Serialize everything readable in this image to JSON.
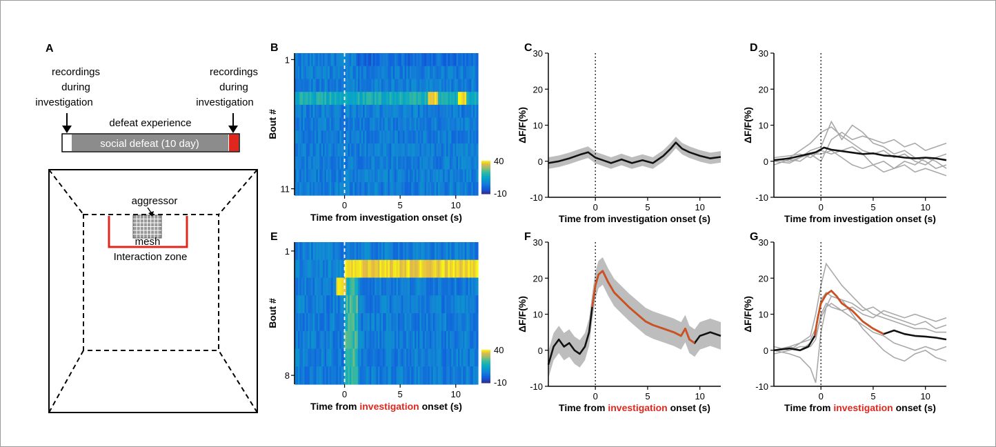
{
  "colors": {
    "black_trace": "#111111",
    "orange_trace": "#d2501e",
    "gray_trace": "#a8a8a8",
    "sem_band": "#bdbdbd",
    "highlight_red": "#e0271e",
    "wall_red": "#e0271e",
    "timeline_gray": "#8c8c8c"
  },
  "panels": {
    "A": {
      "label": "A",
      "left_note": [
        "recordings",
        "during",
        "investigation"
      ],
      "right_note": [
        "recordings",
        "during",
        "investigation"
      ],
      "timeline_title": "defeat experience",
      "timeline_bar": "social defeat (10 day)",
      "aggressor_label": "aggressor",
      "mesh_label": "mesh",
      "zone_label": "Interaction zone"
    }
  },
  "chart_data": [
    {
      "id": "B",
      "label": "B",
      "type": "heatmap",
      "xlabel_parts": [
        "Time from ",
        "investigation",
        " onset (s)"
      ],
      "xlabel_highlight": false,
      "ylabel": "Bout #",
      "xlim": [
        -4.5,
        12
      ],
      "xticks": [
        0,
        5,
        10
      ],
      "row_tick_labels": [
        "1",
        "11"
      ],
      "rows": 11,
      "colorbar": {
        "min": -10,
        "max": 40,
        "labels": [
          "40",
          "-10"
        ]
      },
      "hot_rows": [
        3
      ],
      "hot_spots": [
        [
          3,
          7.9,
          0.45
        ],
        [
          3,
          10.6,
          0.35
        ]
      ]
    },
    {
      "id": "C",
      "label": "C",
      "type": "line",
      "xlabel_parts": [
        "Time from ",
        "investigation",
        " onset (s)"
      ],
      "xlabel_highlight": false,
      "ylabel": "ΔF/F(%)",
      "xlim": [
        -4.5,
        12
      ],
      "ylim": [
        -10,
        30
      ],
      "xticks": [
        0,
        5,
        10
      ],
      "yticks": [
        30,
        20,
        10,
        0,
        -10
      ],
      "mean": [
        [
          -4.5,
          -0.5
        ],
        [
          -3.5,
          0
        ],
        [
          -2.5,
          0.8
        ],
        [
          -1.5,
          1.8
        ],
        [
          -0.7,
          2.5
        ],
        [
          0,
          1
        ],
        [
          0.8,
          0.2
        ],
        [
          1.5,
          -0.5
        ],
        [
          2.5,
          0.5
        ],
        [
          3.5,
          -0.5
        ],
        [
          4.5,
          0.3
        ],
        [
          5.5,
          -0.5
        ],
        [
          6.5,
          1.5
        ],
        [
          7.2,
          3.5
        ],
        [
          7.7,
          5.2
        ],
        [
          8.3,
          3.5
        ],
        [
          9,
          2.5
        ],
        [
          10,
          1.5
        ],
        [
          11,
          0.8
        ],
        [
          12,
          1.2
        ]
      ],
      "sem": 1.6,
      "highlight_range": null,
      "individual": []
    },
    {
      "id": "D",
      "label": "D",
      "type": "line",
      "xlabel_parts": [
        "Time from ",
        "investigation",
        " onset (s)"
      ],
      "xlabel_highlight": false,
      "ylabel": "ΔF/F(%)",
      "xlim": [
        -4.5,
        12
      ],
      "ylim": [
        -10,
        30
      ],
      "xticks": [
        0,
        5,
        10
      ],
      "yticks": [
        30,
        20,
        10,
        0,
        -10
      ],
      "mean": [
        [
          -4.5,
          0.3
        ],
        [
          -3,
          0.8
        ],
        [
          -1.5,
          1.8
        ],
        [
          -0.5,
          2.5
        ],
        [
          0.3,
          3.8
        ],
        [
          1,
          3.2
        ],
        [
          2,
          2.8
        ],
        [
          3,
          2.4
        ],
        [
          4,
          2
        ],
        [
          5,
          2.2
        ],
        [
          6,
          1.6
        ],
        [
          7,
          1.4
        ],
        [
          8,
          1
        ],
        [
          9,
          0.8
        ],
        [
          10,
          1
        ],
        [
          11,
          0.8
        ],
        [
          12,
          0.3
        ]
      ],
      "sem": 0,
      "highlight_range": null,
      "individual": [
        [
          [
            -4.5,
            0
          ],
          [
            -3,
            1
          ],
          [
            -2,
            3
          ],
          [
            -1,
            5
          ],
          [
            0,
            8
          ],
          [
            1,
            9.5
          ],
          [
            2,
            7
          ],
          [
            3,
            5
          ],
          [
            4,
            3
          ],
          [
            5,
            2
          ],
          [
            6,
            3
          ],
          [
            7,
            1
          ],
          [
            8,
            2
          ],
          [
            9,
            0
          ],
          [
            10,
            -1
          ],
          [
            11,
            1
          ],
          [
            12,
            2
          ]
        ],
        [
          [
            -4.5,
            0.5
          ],
          [
            -3,
            0
          ],
          [
            -2,
            1
          ],
          [
            -1,
            3
          ],
          [
            0,
            4
          ],
          [
            1,
            11
          ],
          [
            2,
            6
          ],
          [
            3,
            10
          ],
          [
            4,
            8
          ],
          [
            5,
            5
          ],
          [
            6,
            4
          ],
          [
            7,
            2
          ],
          [
            8,
            3
          ],
          [
            9,
            1
          ],
          [
            10,
            0
          ],
          [
            11,
            -2
          ],
          [
            12,
            -1
          ]
        ],
        [
          [
            -4.5,
            -1
          ],
          [
            -3,
            0.5
          ],
          [
            -2,
            0
          ],
          [
            -1,
            2
          ],
          [
            0,
            2
          ],
          [
            1,
            3
          ],
          [
            2,
            1
          ],
          [
            3,
            -1
          ],
          [
            4,
            -2
          ],
          [
            5,
            -1
          ],
          [
            6,
            0
          ],
          [
            7,
            -2
          ],
          [
            8,
            -1
          ],
          [
            9,
            -3
          ],
          [
            10,
            -2
          ],
          [
            11,
            -3
          ],
          [
            12,
            -4
          ]
        ],
        [
          [
            -4.5,
            0
          ],
          [
            -3,
            -0.5
          ],
          [
            -2,
            1
          ],
          [
            -1,
            2
          ],
          [
            0,
            0
          ],
          [
            1,
            6
          ],
          [
            2,
            8
          ],
          [
            3,
            6
          ],
          [
            4,
            7
          ],
          [
            5,
            6
          ],
          [
            6,
            5
          ],
          [
            7,
            6
          ],
          [
            8,
            4
          ],
          [
            9,
            5
          ],
          [
            10,
            3
          ],
          [
            11,
            4
          ],
          [
            12,
            5
          ]
        ],
        [
          [
            -4.5,
            1
          ],
          [
            -3,
            1.5
          ],
          [
            -2,
            2
          ],
          [
            -1,
            1
          ],
          [
            0,
            3
          ],
          [
            1,
            2
          ],
          [
            2,
            3
          ],
          [
            3,
            4
          ],
          [
            4,
            2
          ],
          [
            5,
            -1
          ],
          [
            6,
            -3
          ],
          [
            7,
            -2
          ],
          [
            8,
            0
          ],
          [
            9,
            -1
          ],
          [
            10,
            1
          ],
          [
            11,
            0
          ],
          [
            12,
            -2
          ]
        ]
      ]
    },
    {
      "id": "E",
      "label": "E",
      "type": "heatmap",
      "xlabel_parts": [
        "Time from ",
        "investigation",
        " onset (s)"
      ],
      "xlabel_highlight": true,
      "ylabel": "Bout #",
      "xlim": [
        -4.5,
        12
      ],
      "xticks": [
        0,
        5,
        10
      ],
      "row_tick_labels": [
        "1",
        "8"
      ],
      "rows": 8,
      "colorbar": {
        "min": -10,
        "max": 40,
        "labels": [
          "40",
          "-10"
        ]
      },
      "hot_rows": [
        1
      ],
      "hot_spots": [
        [
          2,
          -0.3,
          0.45
        ]
      ]
    },
    {
      "id": "F",
      "label": "F",
      "type": "line",
      "xlabel_parts": [
        "Time from ",
        "investigation",
        " onset (s)"
      ],
      "xlabel_highlight": true,
      "ylabel": "ΔF/F(%)",
      "xlim": [
        -4.5,
        12
      ],
      "ylim": [
        -10,
        30
      ],
      "xticks": [
        0,
        5,
        10
      ],
      "yticks": [
        30,
        20,
        10,
        0,
        -10
      ],
      "mean": [
        [
          -4.5,
          -4
        ],
        [
          -4,
          1
        ],
        [
          -3.5,
          3
        ],
        [
          -3,
          1
        ],
        [
          -2.5,
          2
        ],
        [
          -2,
          0
        ],
        [
          -1.5,
          -1
        ],
        [
          -1,
          1
        ],
        [
          -0.6,
          5
        ],
        [
          -0.3,
          12
        ],
        [
          0,
          18
        ],
        [
          0.3,
          21
        ],
        [
          0.7,
          22
        ],
        [
          1.2,
          19
        ],
        [
          1.8,
          16
        ],
        [
          2.5,
          14
        ],
        [
          3.2,
          12
        ],
        [
          4,
          10
        ],
        [
          4.8,
          8
        ],
        [
          5.5,
          7
        ],
        [
          6.5,
          6
        ],
        [
          7.5,
          5
        ],
        [
          8.2,
          4
        ],
        [
          8.6,
          6
        ],
        [
          9,
          3
        ],
        [
          9.5,
          2
        ],
        [
          10,
          4
        ],
        [
          11,
          5
        ],
        [
          12,
          4
        ]
      ],
      "sem": 3.8,
      "highlight_range": [
        -0.5,
        9.5
      ],
      "individual": []
    },
    {
      "id": "G",
      "label": "G",
      "type": "line",
      "xlabel_parts": [
        "Time from ",
        "investigation",
        " onset (s)"
      ],
      "xlabel_highlight": true,
      "ylabel": "ΔF/F(%)",
      "xlim": [
        -4.5,
        12
      ],
      "ylim": [
        -10,
        30
      ],
      "xticks": [
        0,
        5,
        10
      ],
      "yticks": [
        30,
        20,
        10,
        0,
        -10
      ],
      "mean": [
        [
          -4.5,
          0
        ],
        [
          -3,
          0.5
        ],
        [
          -2,
          0
        ],
        [
          -1.2,
          1
        ],
        [
          -0.6,
          4
        ],
        [
          -0.3,
          9
        ],
        [
          0,
          13
        ],
        [
          0.5,
          15.5
        ],
        [
          1,
          16.5
        ],
        [
          1.5,
          15
        ],
        [
          2,
          13
        ],
        [
          3,
          11
        ],
        [
          4,
          8
        ],
        [
          5,
          6
        ],
        [
          6,
          4.5
        ],
        [
          6.5,
          5
        ],
        [
          7,
          5.5
        ],
        [
          8,
          4.5
        ],
        [
          9,
          4
        ],
        [
          10,
          3.8
        ],
        [
          11,
          3.5
        ],
        [
          12,
          3
        ]
      ],
      "sem": 0,
      "highlight_range": [
        -0.6,
        6.2
      ],
      "individual": [
        [
          [
            -4.5,
            0
          ],
          [
            -3,
            1
          ],
          [
            -2,
            2
          ],
          [
            -1,
            4
          ],
          [
            -0.5,
            10
          ],
          [
            0,
            18
          ],
          [
            0.5,
            24
          ],
          [
            1,
            22
          ],
          [
            2,
            18
          ],
          [
            3,
            15
          ],
          [
            4,
            12
          ],
          [
            5,
            10
          ],
          [
            6,
            9
          ],
          [
            7,
            8
          ],
          [
            8,
            7
          ],
          [
            9,
            6
          ],
          [
            10,
            6
          ],
          [
            11,
            5
          ],
          [
            12,
            5
          ]
        ],
        [
          [
            -4.5,
            0
          ],
          [
            -3,
            -1
          ],
          [
            -2,
            -2
          ],
          [
            -1,
            -5
          ],
          [
            -0.5,
            -9
          ],
          [
            0,
            5
          ],
          [
            0.5,
            12
          ],
          [
            1,
            15
          ],
          [
            2,
            14
          ],
          [
            3,
            10
          ],
          [
            4,
            6
          ],
          [
            5,
            3
          ],
          [
            6,
            0
          ],
          [
            7,
            -2
          ],
          [
            8,
            -3
          ],
          [
            9,
            -1
          ],
          [
            10,
            0
          ],
          [
            11,
            -2
          ],
          [
            12,
            -3
          ]
        ],
        [
          [
            -4.5,
            1
          ],
          [
            -3,
            0
          ],
          [
            -2,
            2
          ],
          [
            -1,
            3
          ],
          [
            -0.5,
            6
          ],
          [
            0,
            14
          ],
          [
            0.5,
            16
          ],
          [
            1,
            15
          ],
          [
            2,
            14
          ],
          [
            3,
            13
          ],
          [
            4,
            11
          ],
          [
            5,
            12
          ],
          [
            6,
            10
          ],
          [
            7,
            9
          ],
          [
            8,
            8
          ],
          [
            9,
            7
          ],
          [
            10,
            8
          ],
          [
            11,
            6
          ],
          [
            12,
            7
          ]
        ],
        [
          [
            -4.5,
            -1
          ],
          [
            -3,
            0
          ],
          [
            -2,
            1
          ],
          [
            -1,
            1
          ],
          [
            -0.5,
            3
          ],
          [
            0,
            10
          ],
          [
            0.5,
            13
          ],
          [
            1,
            12
          ],
          [
            2,
            11
          ],
          [
            3,
            12
          ],
          [
            4,
            10
          ],
          [
            5,
            9
          ],
          [
            6,
            11
          ],
          [
            7,
            10
          ],
          [
            8,
            9
          ],
          [
            9,
            10
          ],
          [
            10,
            9
          ],
          [
            11,
            8
          ],
          [
            12,
            9
          ]
        ],
        [
          [
            -4.5,
            0
          ],
          [
            -3,
            1
          ],
          [
            -2,
            0
          ],
          [
            -1,
            2
          ],
          [
            -0.5,
            4
          ],
          [
            0,
            9
          ],
          [
            0.5,
            12
          ],
          [
            1,
            13
          ],
          [
            2,
            11
          ],
          [
            3,
            9
          ],
          [
            4,
            7
          ],
          [
            5,
            5
          ],
          [
            6,
            4
          ],
          [
            7,
            2
          ],
          [
            8,
            1
          ],
          [
            9,
            0
          ],
          [
            10,
            1
          ],
          [
            11,
            0
          ],
          [
            12,
            1
          ]
        ]
      ]
    }
  ]
}
